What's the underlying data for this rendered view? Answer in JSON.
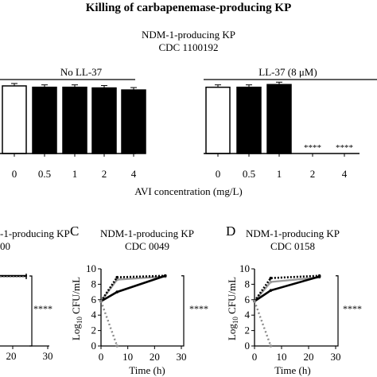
{
  "figure": {
    "main_title": "Killing of carbapenemase-producing KP"
  },
  "chart_data": [
    {
      "id": "top",
      "type": "bar",
      "title": "NDM-1-producing KP",
      "subtitle": "CDC 1100192",
      "xlabel": "AVI concentration (mg/L)",
      "ylabel": "",
      "ylim": [
        0,
        1
      ],
      "groups": [
        {
          "name": "No LL-37",
          "categories": [
            "0",
            "0.5",
            "1",
            "2",
            "4"
          ],
          "values": [
            1.0,
            0.98,
            0.98,
            0.97,
            0.94
          ],
          "colors": [
            "#ffffff",
            "#000000",
            "#000000",
            "#000000",
            "#000000"
          ],
          "labels": [
            "",
            "",
            "",
            "",
            ""
          ]
        },
        {
          "name": "LL-37 (8 μM)",
          "categories": [
            "0",
            "0.5",
            "1",
            "2",
            "4"
          ],
          "values": [
            0.98,
            0.98,
            1.02,
            0.0,
            0.0
          ],
          "colors": [
            "#ffffff",
            "#000000",
            "#000000",
            "#000000",
            "#000000"
          ],
          "labels": [
            "",
            "",
            "",
            "****",
            "****"
          ]
        }
      ]
    },
    {
      "id": "B",
      "type": "line",
      "panel_letter": "",
      "title": "-1-producing KP",
      "subtitle": "00",
      "xlabel": "",
      "x_tick_labels": [
        "20",
        "30"
      ],
      "significance": "****"
    },
    {
      "id": "C",
      "type": "line",
      "panel_letter": "C",
      "title": "NDM-1-producing KP",
      "subtitle": "CDC 0049",
      "xlabel": "Time (h)",
      "ylabel": "Log10 CFU/mL",
      "xlim": [
        0,
        30
      ],
      "ylim": [
        0,
        10
      ],
      "x_ticks": [
        0,
        10,
        20,
        30
      ],
      "y_ticks": [
        0,
        2,
        4,
        6,
        8,
        10
      ],
      "significance": "****",
      "series": [
        {
          "style": "gray-solid",
          "x": [
            0,
            6,
            24
          ],
          "y": [
            5.8,
            8.6,
            9.0
          ]
        },
        {
          "style": "black-dotted",
          "x": [
            0,
            6,
            24
          ],
          "y": [
            5.8,
            8.9,
            9.1
          ]
        },
        {
          "style": "black-solid",
          "x": [
            0,
            6,
            24
          ],
          "y": [
            5.8,
            7.0,
            9.1
          ]
        },
        {
          "style": "gray-dotted",
          "x": [
            0,
            6
          ],
          "y": [
            5.8,
            0.0
          ]
        }
      ]
    },
    {
      "id": "D",
      "type": "line",
      "panel_letter": "D",
      "title": "NDM-1-producing KP",
      "subtitle": "CDC 0158",
      "xlabel": "Time (h)",
      "ylabel": "Log10 CFU/mL",
      "xlim": [
        0,
        30
      ],
      "ylim": [
        0,
        10
      ],
      "x_ticks": [
        0,
        10,
        20,
        30
      ],
      "y_ticks": [
        0,
        2,
        4,
        6,
        8,
        10
      ],
      "significance": "****",
      "series": [
        {
          "style": "gray-solid",
          "x": [
            0,
            6,
            24
          ],
          "y": [
            5.8,
            8.3,
            8.9
          ]
        },
        {
          "style": "black-dotted",
          "x": [
            0,
            6,
            24
          ],
          "y": [
            5.8,
            8.8,
            9.1
          ]
        },
        {
          "style": "black-solid",
          "x": [
            0,
            6,
            24
          ],
          "y": [
            5.8,
            7.2,
            9.0
          ]
        },
        {
          "style": "gray-dotted",
          "x": [
            0,
            6
          ],
          "y": [
            5.8,
            0.0
          ]
        }
      ]
    }
  ]
}
